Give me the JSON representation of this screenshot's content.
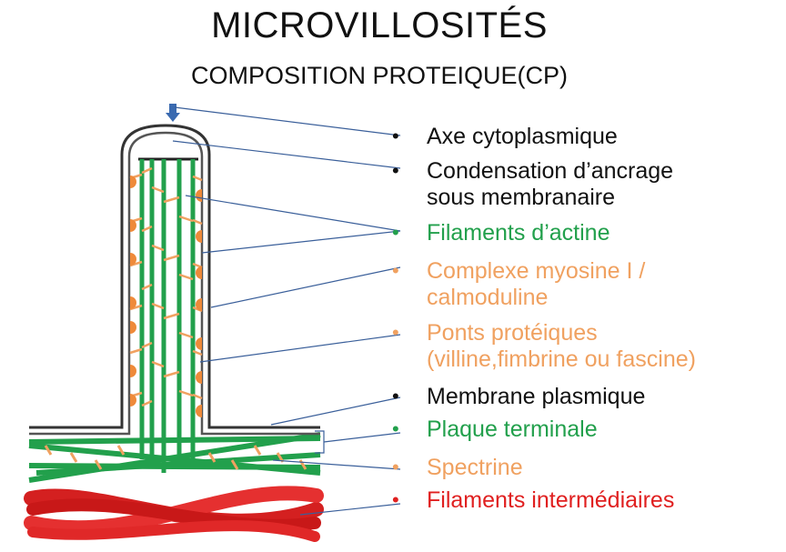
{
  "header": {
    "title": "MICROVILLOSITÉS",
    "subtitle": "COMPOSITION PROTEIQUE(CP)"
  },
  "colors": {
    "black": "#111111",
    "green": "#22a04c",
    "orange": "#f0a160",
    "red": "#e02020",
    "leader_line": "#3a5f9a"
  },
  "legend": [
    {
      "lines": [
        "Axe cytoplasmique"
      ],
      "color": "black"
    },
    {
      "lines": [
        "Condensation d’ancrage",
        "sous membranaire"
      ],
      "color": "black"
    },
    {
      "lines": [
        "Filaments d’actine"
      ],
      "color": "green"
    },
    {
      "lines": [
        "Complexe myosine I /",
        "calmoduline"
      ],
      "color": "orange"
    },
    {
      "lines": [
        " Ponts protéiques",
        "(villine,fimbrine ou fascine)"
      ],
      "color": "orange"
    },
    {
      "lines": [
        "Membrane plasmique"
      ],
      "color": "black"
    },
    {
      "lines": [
        "Plaque terminale"
      ],
      "color": "green"
    },
    {
      "lines": [
        "Spectrine"
      ],
      "color": "orange"
    },
    {
      "lines": [
        " Filaments intermédiaires"
      ],
      "color": "red"
    }
  ]
}
